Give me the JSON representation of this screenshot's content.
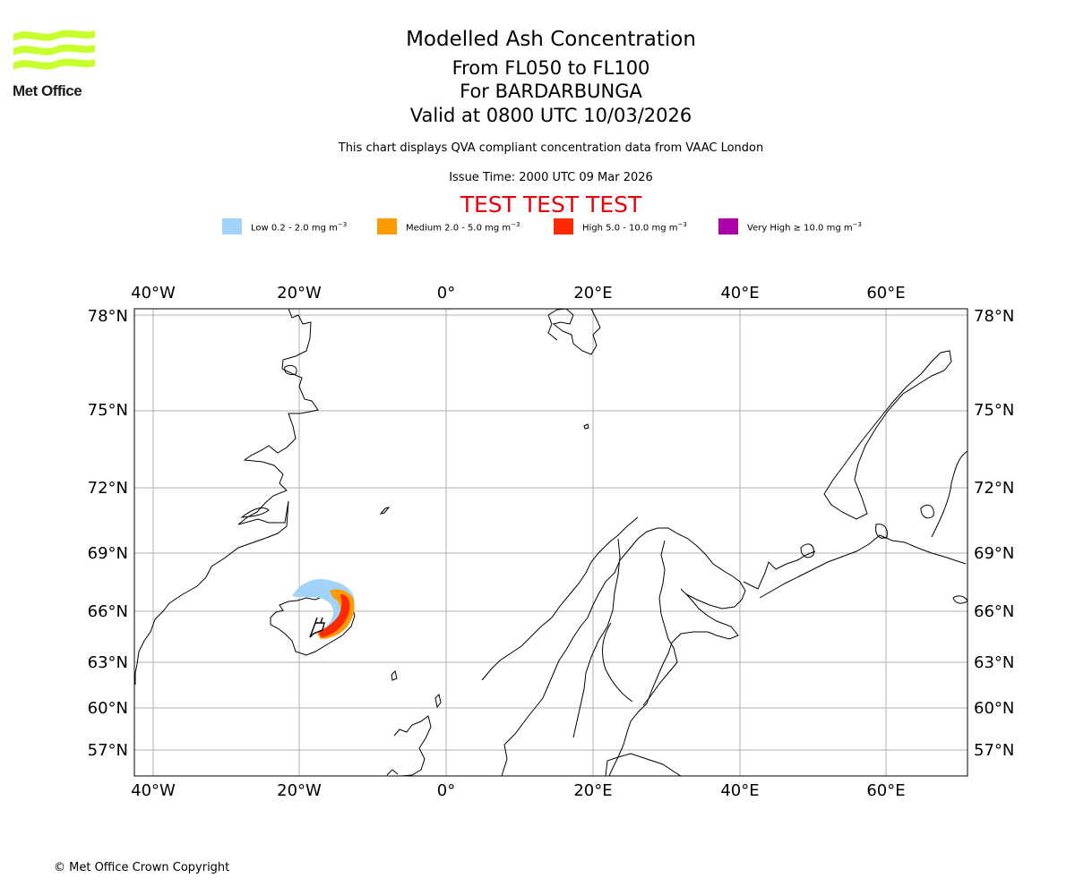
{
  "header": {
    "logo_text": "Met Office",
    "title": "Modelled Ash Concentration",
    "flight_levels": "From FL050 to FL100",
    "volcano": "For BARDARBUNGA",
    "valid_time": "Valid at 0800 UTC 10/03/2026",
    "description": "This chart displays QVA compliant concentration data from VAAC London",
    "issue_time": "Issue Time: 2000 UTC 09 Mar 2026",
    "test_banner": "TEST TEST TEST"
  },
  "legend": [
    {
      "label": "Low 0.2 - 2.0 mg m",
      "unit_exp": "−3",
      "color": "#a2d3fa"
    },
    {
      "label": "Medium 2.0 - 5.0 mg m",
      "unit_exp": "−3",
      "color": "#ff9a00"
    },
    {
      "label": "High 5.0 - 10.0 mg m",
      "unit_exp": "−3",
      "color": "#ff2a00"
    },
    {
      "label": "Very High  ≥  10.0 mg m",
      "unit_exp": "−3",
      "color": "#aa00aa"
    }
  ],
  "map": {
    "lon_ticks": [
      "40°W",
      "20°W",
      "0°",
      "20°E",
      "40°E",
      "60°E"
    ],
    "lat_ticks": [
      "78°N",
      "75°N",
      "72°N",
      "69°N",
      "66°N",
      "63°N",
      "60°N",
      "57°N"
    ],
    "colors": {
      "gridline": "#b0b0b0",
      "coastline": "#000000"
    }
  },
  "footer": {
    "copyright": "© Met Office Crown Copyright"
  }
}
